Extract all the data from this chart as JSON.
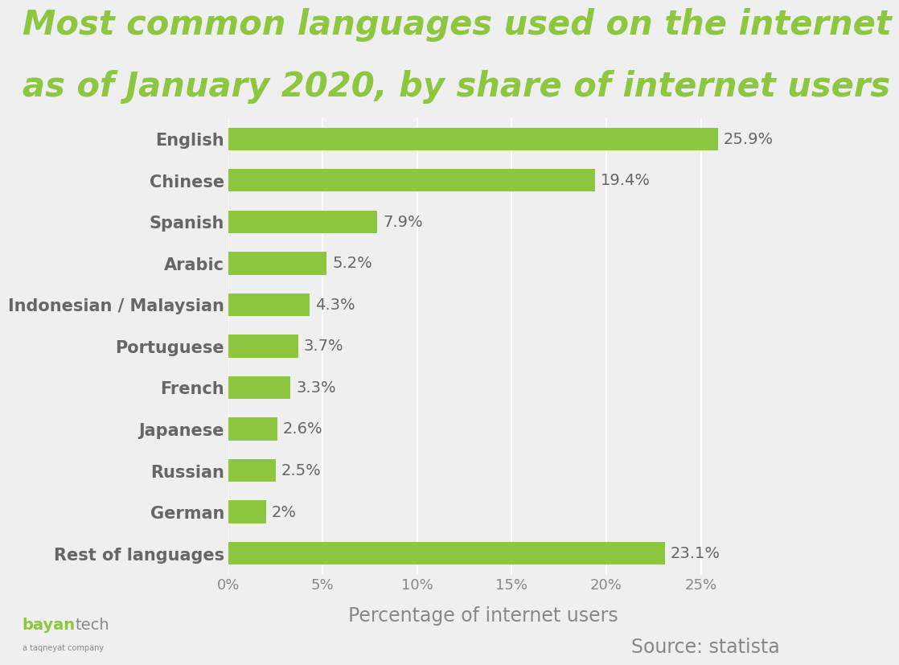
{
  "title_line1": "Most common languages used on the internet",
  "title_line2": "as of January 2020, by share of internet users",
  "title_color": "#8dc63f",
  "title_fontsize": 30,
  "background_color": "#efefef",
  "bar_color": "#8dc63f",
  "xlabel": "Percentage of internet users",
  "xlabel_color": "#888888",
  "xlabel_fontsize": 17,
  "tick_color": "#888888",
  "tick_fontsize": 13,
  "label_fontsize": 15,
  "label_color": "#666666",
  "value_fontsize": 14,
  "value_color": "#666666",
  "source_text": "Source: statista",
  "source_color": "#888888",
  "source_fontsize": 17,
  "categories": [
    "English",
    "Chinese",
    "Spanish",
    "Arabic",
    "Indonesian / Malaysian",
    "Portuguese",
    "French",
    "Japanese",
    "Russian",
    "German",
    "Rest of languages"
  ],
  "values": [
    25.9,
    19.4,
    7.9,
    5.2,
    4.3,
    3.7,
    3.3,
    2.6,
    2.5,
    2.0,
    23.1
  ],
  "value_labels": [
    "25.9%",
    "19.4%",
    "7.9%",
    "5.2%",
    "4.3%",
    "3.7%",
    "3.3%",
    "2.6%",
    "2.5%",
    "2%",
    "23.1%"
  ],
  "xlim": [
    0,
    27
  ],
  "xticks": [
    0,
    5,
    10,
    15,
    20,
    25
  ],
  "xtick_labels": [
    "0%",
    "5%",
    "10%",
    "15%",
    "20%",
    "25%"
  ],
  "bar_height": 0.55
}
